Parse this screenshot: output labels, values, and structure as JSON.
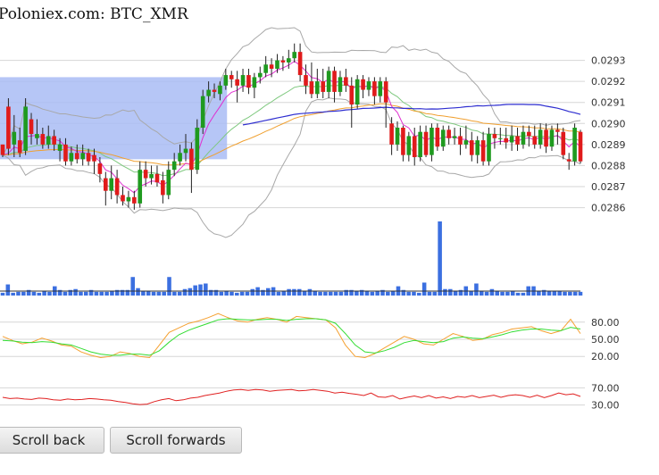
{
  "title": "Poloniex.com: BTC_XMR",
  "buttons": {
    "scroll_back": "Scroll back",
    "scroll_forwards": "Scroll forwards"
  },
  "colors": {
    "up": "#1f9a1f",
    "down": "#e01b1b",
    "volume": "#3b6fe0",
    "ema_short": "#e030d0",
    "ema_mid": "#7ec87e",
    "ema_long": "#f0a030",
    "sma_slow": "#2e2ed0",
    "bollinger": "#a8a8a8",
    "highlight": "#a9bcf5",
    "stoch_k": "#f5a030",
    "stoch_d": "#33dd33",
    "rsi": "#e02020"
  },
  "chart_data": [
    {
      "type": "candlestick",
      "title": "Poloniex.com: BTC_XMR",
      "ylim": [
        0.02856,
        0.0294
      ],
      "y_ticks": [
        "0.0293",
        "0.0292",
        "0.0291",
        "0.0290",
        "0.0289",
        "0.0288",
        "0.0287",
        "0.0286"
      ],
      "grid": true,
      "candles": [
        [
          0.0289,
          0.02885,
          0.0289,
          0.02884
        ],
        [
          0.02908,
          0.02888,
          0.02912,
          0.02885
        ],
        [
          0.0289,
          0.02896,
          0.02904,
          0.02884
        ],
        [
          0.02892,
          0.02886,
          0.02898,
          0.02884
        ],
        [
          0.02887,
          0.02908,
          0.02912,
          0.02885
        ],
        [
          0.02902,
          0.02895,
          0.02905,
          0.0289
        ],
        [
          0.02893,
          0.02895,
          0.02902,
          0.0289
        ],
        [
          0.02895,
          0.0289,
          0.02898,
          0.02888
        ],
        [
          0.0289,
          0.02894,
          0.02899,
          0.02888
        ],
        [
          0.02894,
          0.0289,
          0.02897,
          0.02887
        ],
        [
          0.02887,
          0.0289,
          0.02893,
          0.02882
        ],
        [
          0.0289,
          0.02882,
          0.02893,
          0.0288
        ],
        [
          0.02882,
          0.02886,
          0.02889,
          0.0288
        ],
        [
          0.02886,
          0.02883,
          0.0289,
          0.02881
        ],
        [
          0.02883,
          0.02886,
          0.0289,
          0.0288
        ],
        [
          0.02886,
          0.02882,
          0.02888,
          0.0288
        ],
        [
          0.02885,
          0.02882,
          0.02888,
          0.02876
        ],
        [
          0.02881,
          0.02876,
          0.02884,
          0.02872
        ],
        [
          0.02874,
          0.02868,
          0.02877,
          0.02861
        ],
        [
          0.02868,
          0.02874,
          0.0288,
          0.02864
        ],
        [
          0.02874,
          0.02866,
          0.02878,
          0.02862
        ],
        [
          0.02866,
          0.02863,
          0.0287,
          0.02861
        ],
        [
          0.02863,
          0.02865,
          0.02868,
          0.0286
        ],
        [
          0.02865,
          0.02862,
          0.02868,
          0.02859
        ],
        [
          0.02862,
          0.02878,
          0.02882,
          0.0286
        ],
        [
          0.02878,
          0.02874,
          0.02882,
          0.0287
        ],
        [
          0.02874,
          0.02876,
          0.0288,
          0.02871
        ],
        [
          0.02876,
          0.02872,
          0.0288,
          0.0287
        ],
        [
          0.02873,
          0.02866,
          0.02877,
          0.02862
        ],
        [
          0.02866,
          0.02878,
          0.02882,
          0.02864
        ],
        [
          0.02878,
          0.02882,
          0.02886,
          0.02875
        ],
        [
          0.02882,
          0.02886,
          0.0289,
          0.0288
        ],
        [
          0.02886,
          0.02888,
          0.02895,
          0.02882
        ],
        [
          0.02888,
          0.02878,
          0.02891,
          0.02867
        ],
        [
          0.02878,
          0.02898,
          0.02902,
          0.02876
        ],
        [
          0.02898,
          0.02913,
          0.02916,
          0.02895
        ],
        [
          0.02913,
          0.02916,
          0.0292,
          0.0291
        ],
        [
          0.02916,
          0.02915,
          0.02919,
          0.02912
        ],
        [
          0.02914,
          0.02918,
          0.0292,
          0.02911
        ],
        [
          0.02918,
          0.02923,
          0.02926,
          0.02916
        ],
        [
          0.02923,
          0.02921,
          0.02925,
          0.02917
        ],
        [
          0.02921,
          0.02918,
          0.02925,
          0.0291
        ],
        [
          0.02918,
          0.02923,
          0.02926,
          0.02915
        ],
        [
          0.02923,
          0.02917,
          0.02926,
          0.02914
        ],
        [
          0.02917,
          0.02922,
          0.02924,
          0.02912
        ],
        [
          0.02922,
          0.02924,
          0.02927,
          0.02919
        ],
        [
          0.02924,
          0.02928,
          0.02932,
          0.02922
        ],
        [
          0.02928,
          0.02926,
          0.02931,
          0.02922
        ],
        [
          0.02926,
          0.0293,
          0.02933,
          0.02924
        ],
        [
          0.0293,
          0.02929,
          0.02932,
          0.02925
        ],
        [
          0.02929,
          0.02931,
          0.02935,
          0.02926
        ],
        [
          0.02931,
          0.02934,
          0.02938,
          0.02929
        ],
        [
          0.02934,
          0.02923,
          0.02938,
          0.0292
        ],
        [
          0.02923,
          0.02918,
          0.02928,
          0.02914
        ],
        [
          0.0292,
          0.02914,
          0.02929,
          0.02912
        ],
        [
          0.02914,
          0.0292,
          0.02926,
          0.02912
        ],
        [
          0.0292,
          0.02915,
          0.02926,
          0.02912
        ],
        [
          0.02915,
          0.02925,
          0.02927,
          0.02912
        ],
        [
          0.02925,
          0.02915,
          0.02927,
          0.0291
        ],
        [
          0.02915,
          0.02922,
          0.02925,
          0.02913
        ],
        [
          0.02922,
          0.02918,
          0.02926,
          0.02915
        ],
        [
          0.02918,
          0.02909,
          0.02922,
          0.02898
        ],
        [
          0.02909,
          0.02921,
          0.02923,
          0.02907
        ],
        [
          0.02921,
          0.02916,
          0.02923,
          0.02912
        ],
        [
          0.02916,
          0.0292,
          0.02922,
          0.02913
        ],
        [
          0.0292,
          0.02913,
          0.02922,
          0.02909
        ],
        [
          0.02913,
          0.0292,
          0.02922,
          0.0291
        ],
        [
          0.0292,
          0.0291,
          0.02922,
          0.02898
        ],
        [
          0.029,
          0.0289,
          0.02903,
          0.02885
        ],
        [
          0.0289,
          0.02898,
          0.02901,
          0.02887
        ],
        [
          0.02898,
          0.02885,
          0.02899,
          0.02882
        ],
        [
          0.02885,
          0.02894,
          0.02896,
          0.02882
        ],
        [
          0.02894,
          0.02884,
          0.02898,
          0.0288
        ],
        [
          0.02884,
          0.02896,
          0.02899,
          0.02882
        ],
        [
          0.02896,
          0.02885,
          0.02899,
          0.02884
        ],
        [
          0.02885,
          0.02898,
          0.029,
          0.02882
        ],
        [
          0.02898,
          0.02889,
          0.029,
          0.02887
        ],
        [
          0.02889,
          0.02897,
          0.02899,
          0.02887
        ],
        [
          0.02897,
          0.02893,
          0.02899,
          0.0289
        ],
        [
          0.02893,
          0.02894,
          0.02898,
          0.0289
        ],
        [
          0.02894,
          0.0289,
          0.02898,
          0.02885
        ],
        [
          0.0289,
          0.02892,
          0.02899,
          0.02888
        ],
        [
          0.02892,
          0.02885,
          0.02896,
          0.02882
        ],
        [
          0.02885,
          0.02892,
          0.02894,
          0.02881
        ],
        [
          0.02892,
          0.02882,
          0.02896,
          0.0288
        ],
        [
          0.02882,
          0.02895,
          0.02898,
          0.0288
        ],
        [
          0.02895,
          0.02893,
          0.02898,
          0.02888
        ],
        [
          0.02893,
          0.02893,
          0.02898,
          0.0289
        ],
        [
          0.02893,
          0.02891,
          0.02898,
          0.02888
        ],
        [
          0.02891,
          0.02894,
          0.02899,
          0.02887
        ],
        [
          0.02894,
          0.0289,
          0.02898,
          0.02887
        ],
        [
          0.0289,
          0.02896,
          0.02899,
          0.02888
        ],
        [
          0.02896,
          0.02894,
          0.02899,
          0.02889
        ],
        [
          0.02894,
          0.0289,
          0.02899,
          0.02888
        ],
        [
          0.0289,
          0.02897,
          0.029,
          0.02888
        ],
        [
          0.02897,
          0.02889,
          0.029,
          0.02886
        ],
        [
          0.02889,
          0.02897,
          0.02899,
          0.02887
        ],
        [
          0.02897,
          0.02896,
          0.029,
          0.0289
        ],
        [
          0.02896,
          0.02885,
          0.02898,
          0.02883
        ],
        [
          0.02883,
          0.02882,
          0.02886,
          0.02878
        ],
        [
          0.02882,
          0.02898,
          0.029,
          0.0288
        ],
        [
          0.02896,
          0.02882,
          0.02897,
          0.02881
        ]
      ],
      "highlight_range": [
        0,
        40
      ]
    },
    {
      "type": "bar",
      "name": "volume",
      "values": [
        3,
        12,
        3,
        4,
        4,
        6,
        4,
        3,
        5,
        4,
        10,
        6,
        4,
        6,
        7,
        4,
        4,
        6,
        4,
        4,
        4,
        5,
        6,
        6,
        6,
        20,
        8,
        5,
        5,
        4,
        4,
        4,
        20,
        4,
        4,
        7,
        8,
        11,
        12,
        13,
        6,
        6,
        4,
        5,
        4,
        3,
        4,
        4,
        7,
        9,
        6,
        8,
        9,
        4,
        5,
        7,
        7,
        7,
        5,
        7,
        5,
        4,
        4,
        4,
        4,
        4,
        6,
        6,
        5,
        6,
        5,
        4,
        5,
        6,
        4,
        5,
        10,
        6,
        4,
        4,
        3,
        14,
        4,
        4,
        80,
        7,
        7,
        5,
        6,
        10,
        5,
        13,
        5,
        4,
        7,
        5,
        4,
        4,
        5,
        3,
        3,
        10,
        10,
        5,
        6,
        5,
        5,
        5,
        4,
        4,
        4,
        4
      ],
      "ylim": [
        0,
        80
      ]
    },
    {
      "type": "line",
      "name": "stochastic",
      "y_ticks": [
        "80.00",
        "50.00",
        "20.00"
      ],
      "ylim": [
        0,
        100
      ],
      "series": [
        {
          "values": [
            55,
            48,
            42,
            45,
            52,
            47,
            40,
            38,
            28,
            22,
            18,
            20,
            28,
            25,
            20,
            18,
            40,
            62,
            70,
            78,
            82,
            88,
            95,
            88,
            82,
            80,
            85,
            88,
            85,
            80,
            90,
            88,
            86,
            84,
            70,
            40,
            20,
            18,
            25,
            35,
            45,
            55,
            50,
            42,
            40,
            50,
            60,
            55,
            48,
            50,
            58,
            62,
            68,
            70,
            72,
            65,
            60,
            65,
            85,
            60
          ]
        },
        {
          "values": [
            48,
            47,
            45,
            44,
            46,
            45,
            42,
            40,
            34,
            28,
            24,
            22,
            22,
            24,
            24,
            22,
            30,
            45,
            58,
            66,
            72,
            78,
            84,
            86,
            85,
            84,
            84,
            85,
            85,
            83,
            85,
            86,
            86,
            84,
            78,
            60,
            40,
            28,
            26,
            30,
            36,
            44,
            48,
            46,
            44,
            46,
            52,
            54,
            52,
            51,
            54,
            58,
            63,
            66,
            68,
            68,
            66,
            65,
            71,
            68
          ]
        }
      ]
    },
    {
      "type": "line",
      "name": "rsi",
      "y_ticks": [
        "70.00",
        "30.00"
      ],
      "ylim": [
        0,
        100
      ],
      "series": [
        {
          "values": [
            48,
            45,
            46,
            44,
            43,
            46,
            45,
            42,
            41,
            44,
            42,
            43,
            45,
            44,
            42,
            41,
            38,
            36,
            33,
            31,
            32,
            38,
            42,
            45,
            40,
            42,
            46,
            48,
            52,
            55,
            58,
            62,
            65,
            66,
            64,
            66,
            65,
            62,
            64,
            65,
            66,
            63,
            64,
            66,
            64,
            62,
            58,
            60,
            57,
            55,
            52,
            58,
            49,
            48,
            52,
            44,
            48,
            51,
            47,
            52,
            46,
            49,
            45,
            50,
            48,
            52,
            47,
            50,
            53,
            48,
            52,
            54,
            52,
            48,
            53,
            47,
            52,
            58,
            54,
            56,
            50
          ]
        }
      ]
    }
  ]
}
